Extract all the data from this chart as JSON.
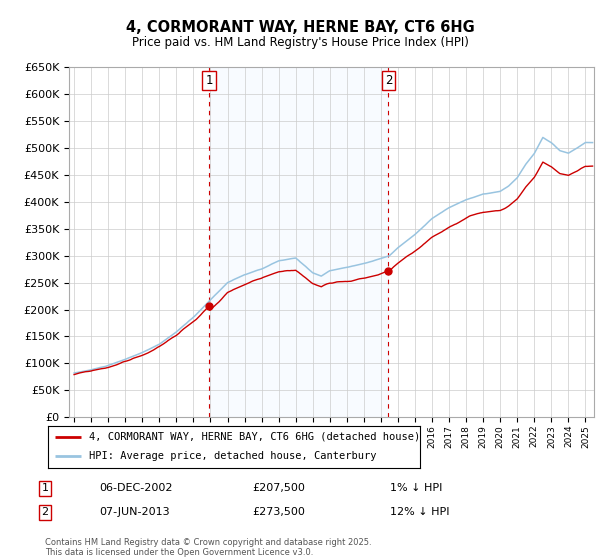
{
  "title": "4, CORMORANT WAY, HERNE BAY, CT6 6HG",
  "subtitle": "Price paid vs. HM Land Registry's House Price Index (HPI)",
  "legend_line1": "4, CORMORANT WAY, HERNE BAY, CT6 6HG (detached house)",
  "legend_line2": "HPI: Average price, detached house, Canterbury",
  "footnote": "Contains HM Land Registry data © Crown copyright and database right 2025.\nThis data is licensed under the Open Government Licence v3.0.",
  "transaction1": {
    "label": "1",
    "date": "06-DEC-2002",
    "price": "£207,500",
    "pct": "1% ↓ HPI",
    "year": 2002.92,
    "price_val": 207500
  },
  "transaction2": {
    "label": "2",
    "date": "07-JUN-2013",
    "price": "£273,500",
    "pct": "12% ↓ HPI",
    "year": 2013.44,
    "price_val": 273500
  },
  "ylim": [
    0,
    650000
  ],
  "yticks": [
    0,
    50000,
    100000,
    150000,
    200000,
    250000,
    300000,
    350000,
    400000,
    450000,
    500000,
    550000,
    600000,
    650000
  ],
  "red_color": "#cc0000",
  "blue_color": "#99c4e0",
  "shade_color": "#ddeeff",
  "grid_color": "#cccccc",
  "background_color": "#ffffff"
}
